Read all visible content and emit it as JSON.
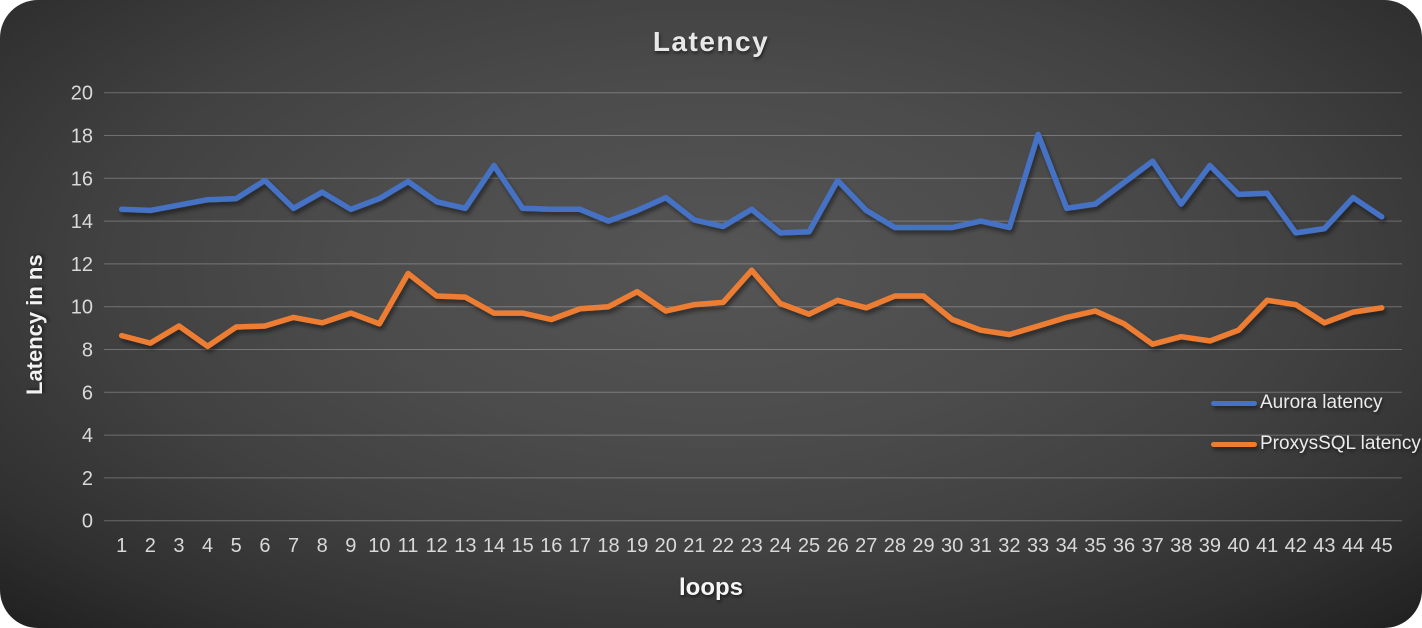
{
  "chart_data": {
    "type": "line",
    "title": "Latency",
    "xlabel": "loops",
    "ylabel": "Latency in ns",
    "categories": [
      1,
      2,
      3,
      4,
      5,
      6,
      7,
      8,
      9,
      10,
      11,
      12,
      13,
      14,
      15,
      16,
      17,
      18,
      19,
      20,
      21,
      22,
      23,
      24,
      25,
      26,
      27,
      28,
      29,
      30,
      31,
      32,
      33,
      34,
      35,
      36,
      37,
      38,
      39,
      40,
      41,
      42,
      43,
      44,
      45
    ],
    "series": [
      {
        "name": "Aurora latency",
        "color": "#4472C4",
        "values": [
          14.55,
          14.5,
          14.75,
          15.0,
          15.05,
          15.9,
          14.6,
          15.35,
          14.55,
          15.05,
          15.85,
          14.9,
          14.6,
          16.6,
          14.6,
          14.55,
          14.55,
          14.0,
          14.5,
          15.1,
          14.05,
          13.75,
          14.55,
          13.45,
          13.5,
          15.9,
          14.5,
          13.7,
          13.7,
          13.7,
          14.0,
          13.7,
          18.05,
          14.6,
          14.8,
          15.8,
          16.8,
          14.8,
          16.6,
          15.25,
          15.3,
          13.45,
          13.65,
          15.1,
          14.2
        ]
      },
      {
        "name": "ProxysSQL latency",
        "color": "#ED7D31",
        "values": [
          8.65,
          8.3,
          9.1,
          8.15,
          9.05,
          9.1,
          9.5,
          9.25,
          9.7,
          9.2,
          11.55,
          10.5,
          10.45,
          9.7,
          9.7,
          9.4,
          9.9,
          10.0,
          10.7,
          9.8,
          10.1,
          10.2,
          11.7,
          10.15,
          9.65,
          10.3,
          9.95,
          10.5,
          10.5,
          9.4,
          8.9,
          8.7,
          9.1,
          9.5,
          9.8,
          9.2,
          8.25,
          8.6,
          8.4,
          8.9,
          10.3,
          10.1,
          9.25,
          9.75,
          9.95
        ]
      }
    ],
    "ylim": [
      0,
      20
    ],
    "ytick_step": 2,
    "grid": "horizontal",
    "legend_position": "right-middle",
    "background_color": "#454545"
  }
}
